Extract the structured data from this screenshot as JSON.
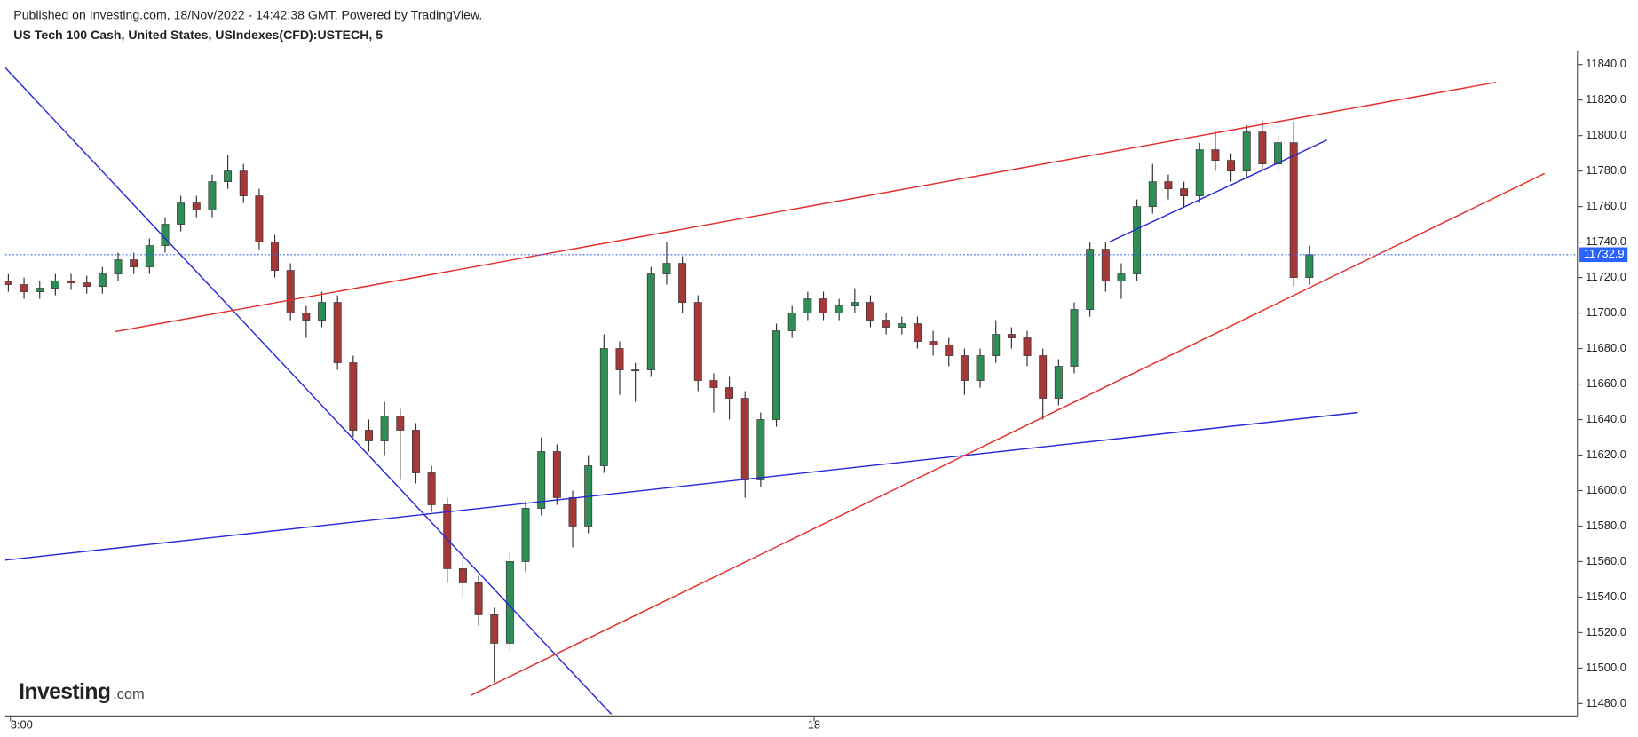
{
  "header": {
    "published": "Published on Investing.com, 18/Nov/2022 - 14:42:38 GMT, Powered by TradingView.",
    "instrument": "US Tech 100 Cash, United States, USIndexes(CFD):USTECH, 5"
  },
  "logo": {
    "main": "Investing",
    "suffix": ".com"
  },
  "chart_data": {
    "type": "candlestick",
    "up_color": "#2f8e56",
    "down_color": "#a53838",
    "x": [
      0,
      1,
      2,
      3,
      4,
      5,
      6,
      7,
      8,
      9,
      10,
      11,
      12,
      13,
      14,
      15,
      16,
      17,
      18,
      19,
      20,
      21,
      22,
      23,
      24,
      25,
      26,
      27,
      28,
      29,
      30,
      31,
      32,
      33,
      34,
      35,
      36,
      37,
      38,
      39,
      40,
      41,
      42,
      43,
      44,
      45,
      46,
      47,
      48,
      49,
      50,
      51,
      52,
      53,
      54,
      55,
      56,
      57,
      58,
      59,
      60,
      61,
      62,
      63,
      64,
      65,
      66,
      67,
      68,
      69,
      70,
      71,
      72,
      73,
      74,
      75,
      76,
      77,
      78,
      79,
      80,
      81,
      82,
      83
    ],
    "open": [
      11718,
      11716,
      11712,
      11714,
      11718,
      11717,
      11715,
      11722,
      11730,
      11726,
      11738,
      11750,
      11762,
      11758,
      11774,
      11780,
      11766,
      11740,
      11724,
      11700,
      11696,
      11706,
      11672,
      11634,
      11628,
      11642,
      11634,
      11610,
      11592,
      11556,
      11548,
      11530,
      11514,
      11560,
      11590,
      11622,
      11596,
      11580,
      11614,
      11680,
      11668,
      11668,
      11722,
      11728,
      11706,
      11662,
      11658,
      11652,
      11606,
      11640,
      11690,
      11700,
      11708,
      11700,
      11704,
      11706,
      11696,
      11692,
      11694,
      11684,
      11682,
      11676,
      11662,
      11676,
      11688,
      11686,
      11676,
      11652,
      11670,
      11702,
      11736,
      11718,
      11722,
      11760,
      11774,
      11770,
      11766,
      11792,
      11786,
      11780,
      11802,
      11784,
      11796,
      11720
    ],
    "high": [
      11722,
      11720,
      11718,
      11722,
      11722,
      11721,
      11726,
      11734,
      11734,
      11742,
      11754,
      11766,
      11766,
      11778,
      11789,
      11784,
      11770,
      11744,
      11728,
      11704,
      11712,
      11710,
      11676,
      11640,
      11650,
      11646,
      11638,
      11614,
      11596,
      11564,
      11552,
      11534,
      11566,
      11594,
      11630,
      11626,
      11600,
      11620,
      11688,
      11684,
      11672,
      11726,
      11740,
      11732,
      11710,
      11666,
      11664,
      11656,
      11644,
      11694,
      11704,
      11712,
      11712,
      11708,
      11714,
      11710,
      11700,
      11698,
      11698,
      11690,
      11686,
      11680,
      11680,
      11696,
      11692,
      11690,
      11680,
      11674,
      11706,
      11740,
      11740,
      11728,
      11764,
      11784,
      11778,
      11774,
      11796,
      11802,
      11790,
      11806,
      11808,
      11800,
      11808,
      11738
    ],
    "low": [
      11712,
      11708,
      11708,
      11710,
      11713,
      11711,
      11711,
      11718,
      11722,
      11722,
      11734,
      11746,
      11754,
      11754,
      11770,
      11762,
      11736,
      11720,
      11696,
      11686,
      11692,
      11668,
      11630,
      11622,
      11620,
      11606,
      11604,
      11588,
      11548,
      11540,
      11524,
      11492,
      11510,
      11554,
      11586,
      11592,
      11568,
      11576,
      11610,
      11654,
      11650,
      11664,
      11716,
      11700,
      11656,
      11644,
      11640,
      11596,
      11602,
      11636,
      11686,
      11696,
      11696,
      11696,
      11700,
      11692,
      11688,
      11688,
      11680,
      11676,
      11670,
      11654,
      11658,
      11672,
      11680,
      11670,
      11640,
      11648,
      11666,
      11698,
      11712,
      11708,
      11718,
      11756,
      11764,
      11760,
      11762,
      11780,
      11774,
      11776,
      11780,
      11780,
      11715,
      11716
    ],
    "close": [
      11716,
      11712,
      11714,
      11718,
      11717,
      11715,
      11722,
      11730,
      11726,
      11738,
      11750,
      11762,
      11758,
      11774,
      11780,
      11766,
      11740,
      11724,
      11700,
      11696,
      11706,
      11672,
      11634,
      11628,
      11642,
      11634,
      11610,
      11592,
      11556,
      11548,
      11530,
      11514,
      11560,
      11590,
      11622,
      11596,
      11580,
      11614,
      11680,
      11668,
      11668,
      11722,
      11728,
      11706,
      11662,
      11658,
      11652,
      11606,
      11640,
      11690,
      11700,
      11708,
      11700,
      11704,
      11706,
      11696,
      11692,
      11694,
      11684,
      11682,
      11676,
      11662,
      11676,
      11688,
      11686,
      11676,
      11652,
      11670,
      11702,
      11736,
      11718,
      11722,
      11760,
      11774,
      11770,
      11766,
      11792,
      11786,
      11780,
      11802,
      11784,
      11796,
      11720,
      11732.9
    ],
    "xlim": [
      -0.2,
      100.1
    ],
    "ylim": [
      11473,
      11848
    ],
    "xticks": [
      {
        "value": 0.13,
        "label": "3:00"
      },
      {
        "value": 51.4,
        "label": "18"
      }
    ],
    "yticks": [
      {
        "value": 11480,
        "label": "11480.0"
      },
      {
        "value": 11500,
        "label": "11500.0"
      },
      {
        "value": 11520,
        "label": "11520.0"
      },
      {
        "value": 11540,
        "label": "11540.0"
      },
      {
        "value": 11560,
        "label": "11560.0"
      },
      {
        "value": 11580,
        "label": "11580.0"
      },
      {
        "value": 11600,
        "label": "11600.0"
      },
      {
        "value": 11620,
        "label": "11620.0"
      },
      {
        "value": 11640,
        "label": "11640.0"
      },
      {
        "value": 11660,
        "label": "11660.0"
      },
      {
        "value": 11680,
        "label": "11680.0"
      },
      {
        "value": 11700,
        "label": "11700.0"
      },
      {
        "value": 11720,
        "label": "11720.0"
      },
      {
        "value": 11740,
        "label": "11740.0"
      },
      {
        "value": 11760,
        "label": "11760.0"
      },
      {
        "value": 11780,
        "label": "11780.0"
      },
      {
        "value": 11800,
        "label": "11800.0"
      },
      {
        "value": 11820,
        "label": "11820.0"
      },
      {
        "value": 11840,
        "label": "11840.0"
      }
    ],
    "last_price": {
      "value": 11732.9,
      "color": "#2962ff"
    },
    "trendlines": [
      {
        "color": "#2626d9",
        "x": [
          -0.2,
          38.47
        ],
        "y": [
          11838.2,
          11474
        ]
      },
      {
        "color": "#2626d9",
        "x": [
          -0.2,
          86.1
        ],
        "y": [
          11560.8,
          11644
        ]
      },
      {
        "color": "#e62828",
        "x": [
          6.8,
          94.9
        ],
        "y": [
          11689.5,
          11830
        ]
      },
      {
        "color": "#e62828",
        "x": [
          29.5,
          98
        ],
        "y": [
          11484.6,
          11778.6
        ]
      },
      {
        "color": "#2626d9",
        "x": [
          70.27,
          84.13
        ],
        "y": [
          11740.2,
          11797.5
        ]
      }
    ]
  }
}
